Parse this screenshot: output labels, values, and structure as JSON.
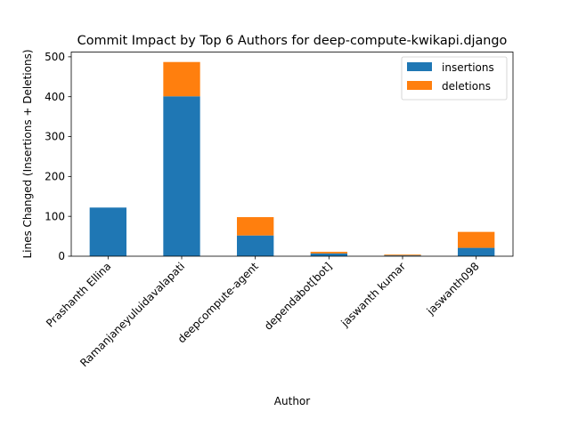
{
  "chart_data": {
    "type": "bar",
    "stacked": true,
    "title": "Commit Impact by Top 6 Authors for deep-compute-kwikapi.django",
    "xlabel": "Author",
    "ylabel": "Lines Changed (Insertions + Deletions)",
    "categories": [
      "Prashanth Ellina",
      "Ramanjaneyuluidavalapati",
      "deepcompute-agent",
      "dependabot[bot]",
      "jaswanth kumar",
      "jaswanth098"
    ],
    "series": [
      {
        "name": "insertions",
        "values": [
          122,
          401,
          52,
          7,
          2,
          21
        ],
        "color": "#1f77b4"
      },
      {
        "name": "deletions",
        "values": [
          0,
          86,
          46,
          4,
          2,
          40
        ],
        "color": "#ff7f0e"
      }
    ],
    "yticks": [
      0,
      100,
      200,
      300,
      400,
      500
    ],
    "ylim": [
      0,
      512
    ],
    "legend": "top-right",
    "grid": false
  }
}
